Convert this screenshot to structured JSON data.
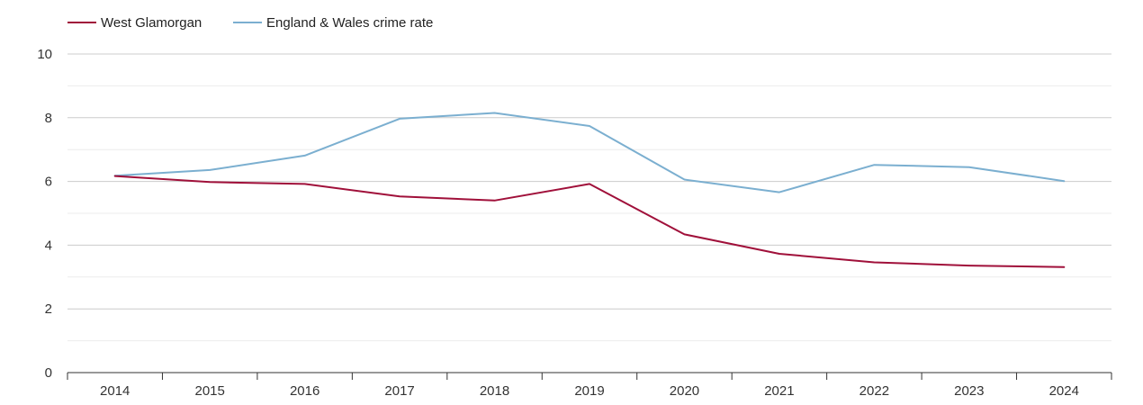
{
  "chart_data": {
    "type": "line",
    "title": "",
    "xlabel": "",
    "ylabel": "",
    "x": [
      "2014",
      "2015",
      "2016",
      "2017",
      "2018",
      "2019",
      "2020",
      "2021",
      "2022",
      "2023",
      "2024"
    ],
    "ylim": [
      0,
      10
    ],
    "yticks": [
      "0",
      "2",
      "4",
      "6",
      "8",
      "10"
    ],
    "grid": true,
    "legend_position": "top-left",
    "series": [
      {
        "name": "West Glamorgan",
        "color": "#a0103a",
        "values": [
          6.17,
          5.98,
          5.92,
          5.53,
          5.4,
          5.92,
          4.34,
          3.73,
          3.46,
          3.36,
          3.31
        ]
      },
      {
        "name": "England & Wales crime rate",
        "color": "#7bafd0",
        "values": [
          6.18,
          6.36,
          6.81,
          7.97,
          8.15,
          7.74,
          6.06,
          5.66,
          6.52,
          6.45,
          6.01
        ]
      }
    ]
  }
}
